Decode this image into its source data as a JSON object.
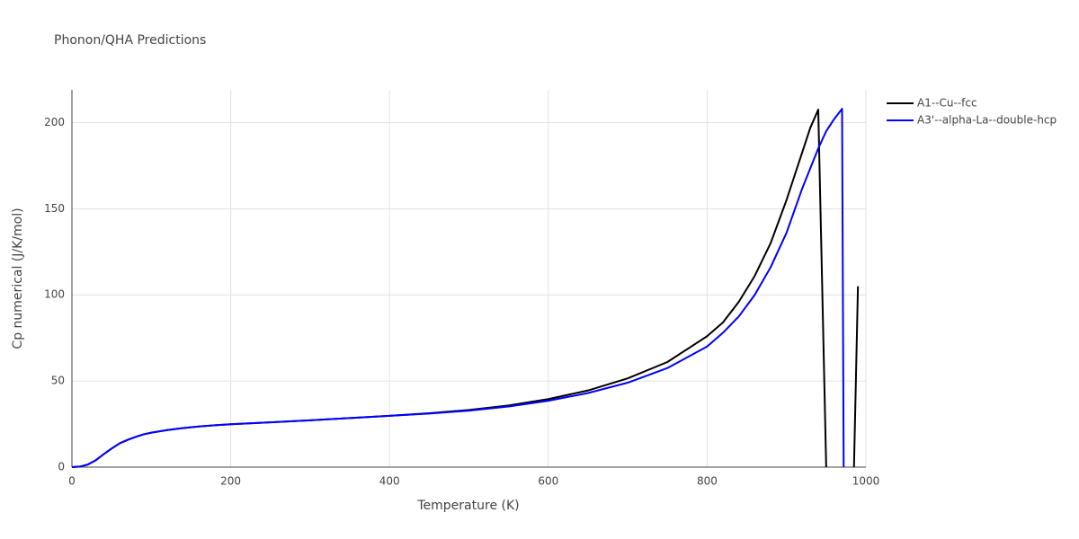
{
  "chart_data": {
    "type": "line",
    "title": "Phonon/QHA Predictions",
    "x_label": "Temperature (K)",
    "y_label": "Cp numerical (J/K/mol)",
    "xlim": [
      0,
      1000
    ],
    "ylim": [
      0,
      219
    ],
    "xticks": [
      0,
      200,
      400,
      600,
      800,
      1000
    ],
    "yticks": [
      0,
      50,
      100,
      150,
      200
    ],
    "grid": true,
    "legend": "top-right",
    "series": [
      {
        "name": "A1--Cu--fcc",
        "color": "#000000",
        "x": [
          0,
          10,
          20,
          30,
          40,
          50,
          60,
          70,
          80,
          90,
          100,
          120,
          140,
          160,
          180,
          200,
          250,
          300,
          350,
          400,
          450,
          500,
          550,
          600,
          650,
          700,
          750,
          800,
          820,
          840,
          860,
          880,
          900,
          920,
          930,
          940,
          950,
          960,
          985,
          990
        ],
        "values": [
          0,
          0.3,
          1.5,
          4,
          7.5,
          10.8,
          13.8,
          15.8,
          17.5,
          19,
          20,
          21.5,
          22.7,
          23.6,
          24.3,
          24.9,
          26,
          27.2,
          28.5,
          29.8,
          31.3,
          33.2,
          35.8,
          39.5,
          44.5,
          51.5,
          61,
          76,
          84,
          96,
          111,
          130,
          155,
          183,
          197,
          207.5,
          0,
          null,
          0,
          105
        ]
      },
      {
        "name": "A3'--alpha-La--double-hcp",
        "color": "#0000ff",
        "x": [
          0,
          10,
          20,
          30,
          40,
          50,
          60,
          70,
          80,
          90,
          100,
          120,
          140,
          160,
          180,
          200,
          250,
          300,
          350,
          400,
          450,
          500,
          550,
          600,
          650,
          700,
          750,
          800,
          820,
          840,
          860,
          880,
          900,
          920,
          940,
          950,
          960,
          970,
          972
        ],
        "values": [
          0,
          0.3,
          1.5,
          4,
          7.5,
          10.8,
          13.8,
          15.8,
          17.5,
          19,
          20,
          21.5,
          22.7,
          23.6,
          24.3,
          24.9,
          26,
          27.2,
          28.5,
          29.8,
          31.1,
          32.8,
          35.2,
          38.5,
          43,
          49,
          57.5,
          70,
          78,
          87.5,
          100,
          116,
          136,
          162,
          185,
          195,
          202,
          208,
          0
        ]
      }
    ]
  }
}
